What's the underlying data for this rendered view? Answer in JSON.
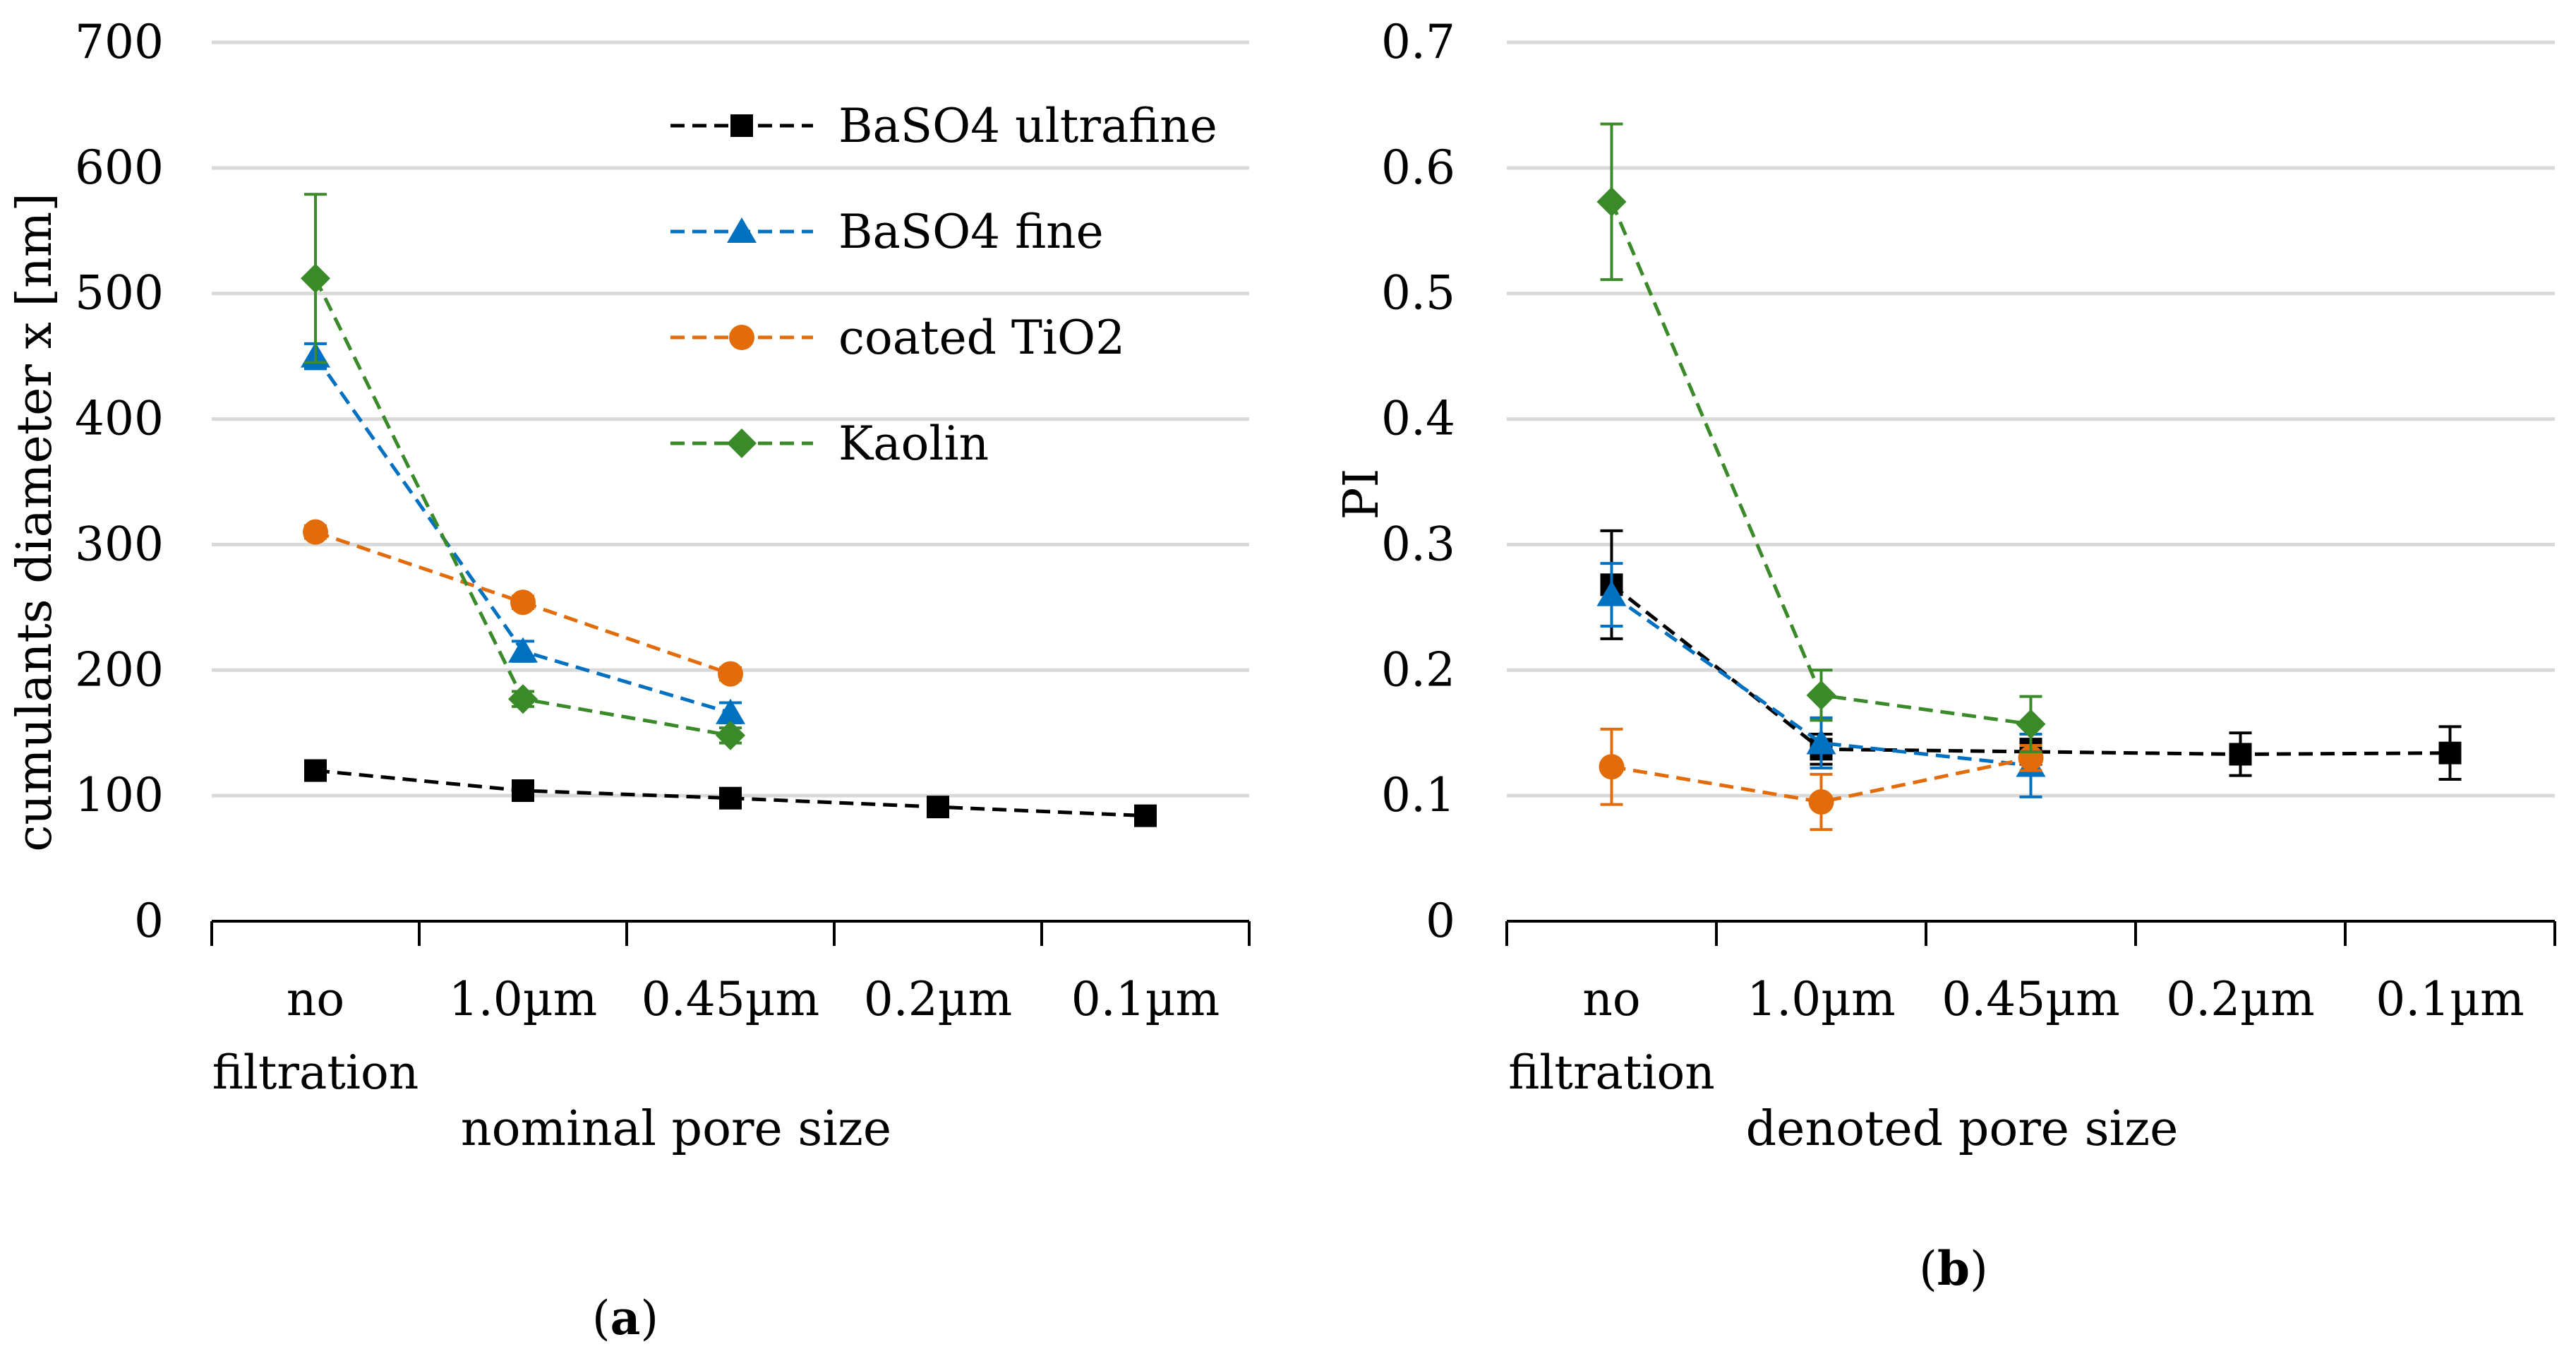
{
  "chart_data": [
    {
      "type": "line",
      "panel_label": {
        "open": "(",
        "letter": "a",
        "close": ")"
      },
      "xlabel": "nominal pore size",
      "ylabel": "cumulants diameter x [nm]",
      "categories": [
        [
          "no",
          "filtration"
        ],
        [
          "1.0µm"
        ],
        [
          "0.45µm"
        ],
        [
          "0.2µm"
        ],
        [
          "0.1µm"
        ]
      ],
      "ylim": [
        0,
        700
      ],
      "yticks": [
        "0",
        "100",
        "200",
        "300",
        "400",
        "500",
        "600",
        "700"
      ],
      "grid": true,
      "legend_position": "top-right",
      "series": [
        {
          "name": "BaSO4 ultrafine",
          "color": "#000000",
          "marker": "square",
          "values": [
            120,
            104,
            98,
            91,
            84
          ],
          "errors": [
            5,
            5,
            5,
            5,
            5
          ]
        },
        {
          "name": "BaSO4 fine",
          "color": "#0070c0",
          "marker": "triangle",
          "values": [
            450,
            215,
            166,
            null,
            null
          ],
          "errors": [
            10,
            8,
            8,
            null,
            null
          ]
        },
        {
          "name": "coated TiO2",
          "color": "#e36c0a",
          "marker": "circle",
          "values": [
            310,
            254,
            197,
            null,
            null
          ],
          "errors": [
            5,
            5,
            5,
            null,
            null
          ]
        },
        {
          "name": "Kaolin",
          "color": "#3a8a2a",
          "marker": "diamond",
          "values": [
            512,
            177,
            148,
            null,
            null
          ],
          "errors": [
            67,
            6,
            6,
            null,
            null
          ]
        }
      ]
    },
    {
      "type": "line",
      "panel_label": {
        "open": "(",
        "letter": "b",
        "close": ")"
      },
      "xlabel": "denoted pore size",
      "ylabel": "PI",
      "categories": [
        [
          "no",
          "filtration"
        ],
        [
          "1.0µm"
        ],
        [
          "0.45µm"
        ],
        [
          "0.2µm"
        ],
        [
          "0.1µm"
        ]
      ],
      "ylim": [
        0,
        0.7
      ],
      "yticks": [
        "0",
        "0.1",
        "0.2",
        "0.3",
        "0.4",
        "0.5",
        "0.6",
        "0.7"
      ],
      "grid": true,
      "series": [
        {
          "name": "BaSO4 ultrafine",
          "color": "#000000",
          "marker": "square",
          "values": [
            0.268,
            0.137,
            0.135,
            0.133,
            0.134
          ],
          "errors": [
            0.043,
            0.012,
            0.01,
            0.017,
            0.021
          ]
        },
        {
          "name": "BaSO4 fine",
          "color": "#0070c0",
          "marker": "triangle",
          "values": [
            0.26,
            0.142,
            0.124,
            null,
            null
          ],
          "errors": [
            0.025,
            0.02,
            0.025,
            null,
            null
          ]
        },
        {
          "name": "coated TiO2",
          "color": "#e36c0a",
          "marker": "circle",
          "values": [
            0.123,
            0.095,
            0.13,
            null,
            null
          ],
          "errors": [
            0.03,
            0.022,
            0.01,
            null,
            null
          ]
        },
        {
          "name": "Kaolin",
          "color": "#3a8a2a",
          "marker": "diamond",
          "values": [
            0.573,
            0.18,
            0.157,
            null,
            null
          ],
          "errors": [
            0.062,
            0.02,
            0.022,
            null,
            null
          ]
        }
      ]
    }
  ]
}
